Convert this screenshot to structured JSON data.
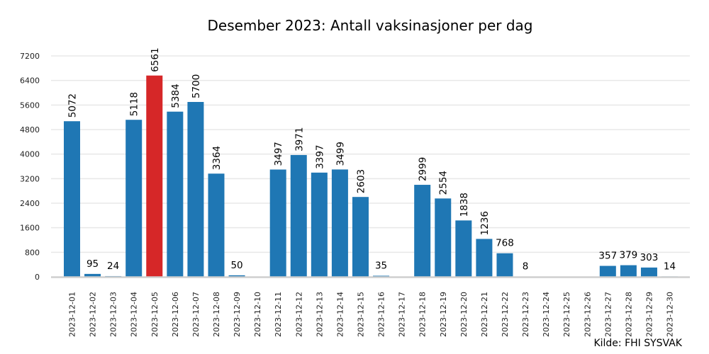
{
  "chart_data": {
    "type": "bar",
    "title": "Desember 2023: Antall vaksinasjoner per dag",
    "xlabel": "",
    "ylabel": "",
    "ylim": [
      0,
      7200
    ],
    "yticks": [
      0,
      800,
      1600,
      2400,
      3200,
      4000,
      4800,
      5600,
      6400,
      7200
    ],
    "grid": "horizontal",
    "legend": null,
    "highlight": {
      "category": "2023-12-05",
      "color": "#d62728"
    },
    "bar_color": "#1f77b4",
    "categories": [
      "2023-12-01",
      "2023-12-02",
      "2023-12-03",
      "2023-12-04",
      "2023-12-05",
      "2023-12-06",
      "2023-12-07",
      "2023-12-08",
      "2023-12-09",
      "2023-12-10",
      "2023-12-11",
      "2023-12-12",
      "2023-12-13",
      "2023-12-14",
      "2023-12-15",
      "2023-12-16",
      "2023-12-17",
      "2023-12-18",
      "2023-12-19",
      "2023-12-20",
      "2023-12-21",
      "2023-12-22",
      "2023-12-23",
      "2023-12-24",
      "2023-12-25",
      "2023-12-26",
      "2023-12-27",
      "2023-12-28",
      "2023-12-29",
      "2023-12-30"
    ],
    "values": [
      5072,
      95,
      24,
      5118,
      6561,
      5384,
      5700,
      3364,
      50,
      0,
      3497,
      3971,
      3397,
      3499,
      2603,
      35,
      0,
      2999,
      2554,
      1838,
      1236,
      768,
      8,
      0,
      0,
      0,
      357,
      379,
      303,
      14
    ],
    "labels": [
      "5072",
      "95",
      "24",
      "5118",
      "6561",
      "5384",
      "5700",
      "3364",
      "50",
      "",
      "3497",
      "3971",
      "3397",
      "3499",
      "2603",
      "35",
      "",
      "2999",
      "2554",
      "1838",
      "1236",
      "768",
      "8",
      "",
      "",
      "",
      "357",
      "379",
      "303",
      "14"
    ],
    "label_rotated": [
      true,
      false,
      false,
      true,
      true,
      true,
      true,
      true,
      false,
      false,
      true,
      true,
      true,
      true,
      true,
      false,
      false,
      true,
      true,
      true,
      true,
      false,
      false,
      false,
      false,
      false,
      false,
      false,
      false,
      false
    ],
    "annotation": "Kilde: FHI SYSVAK"
  },
  "footer": {
    "source": "Kilde: FHI SYSVAK"
  }
}
